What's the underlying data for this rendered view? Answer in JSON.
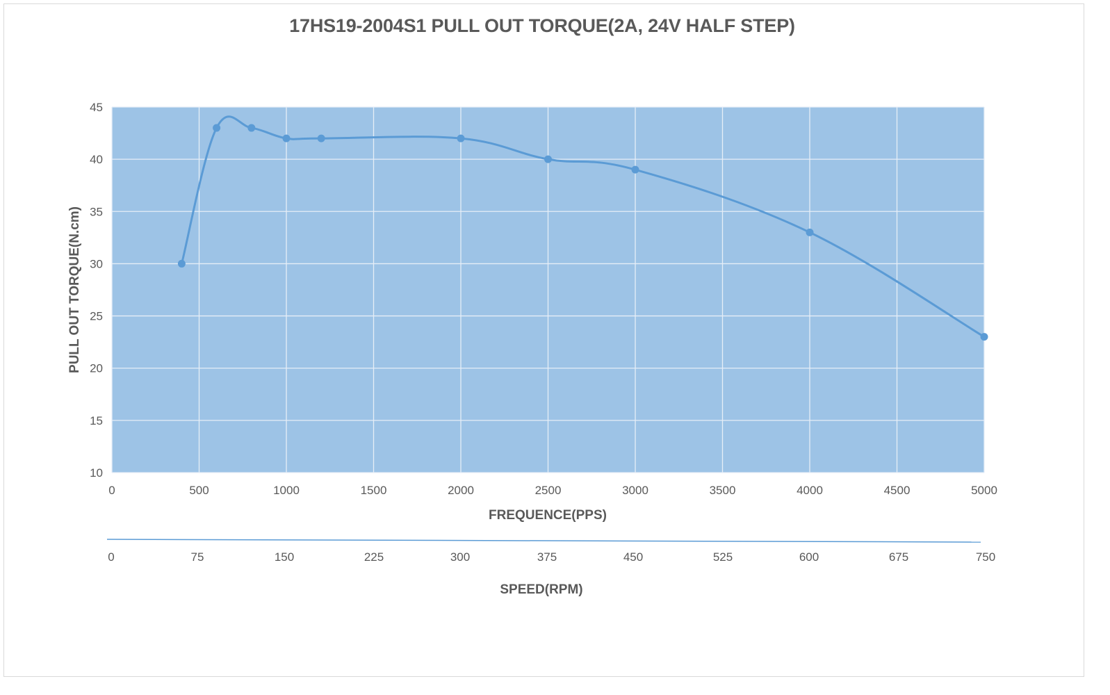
{
  "chart_data": {
    "type": "line",
    "title": "17HS19-2004S1 PULL OUT TORQUE(2A, 24V HALF STEP)",
    "xlabel": "FREQUENCE(PPS)",
    "ylabel": "PULL OUT TORQUE(N.cm)",
    "secondary_xlabel": "SPEED(RPM)",
    "xlim": [
      0,
      5000
    ],
    "ylim": [
      10,
      45
    ],
    "x_ticks": [
      "0",
      "500",
      "1000",
      "1500",
      "2000",
      "2500",
      "3000",
      "3500",
      "4000",
      "4500",
      "5000"
    ],
    "y_ticks": [
      "10",
      "15",
      "20",
      "25",
      "30",
      "35",
      "40",
      "45"
    ],
    "secondary_x_ticks": [
      "0",
      "75",
      "150",
      "225",
      "300",
      "375",
      "450",
      "525",
      "600",
      "675",
      "750"
    ],
    "series": [
      {
        "x": [
          400,
          600,
          800,
          1000,
          1200,
          2000,
          2500,
          3000,
          4000,
          5000
        ],
        "y": [
          30,
          43,
          43,
          42,
          42,
          42,
          40,
          39,
          33,
          23
        ]
      }
    ],
    "smooth": true,
    "markers": true,
    "grid": true,
    "colors": {
      "plot_background": "#9dc3e6",
      "line": "#5b9bd5",
      "grid": "#e6eef7",
      "text": "#595959",
      "secondary_axis_line": "#5b9bd5"
    }
  }
}
